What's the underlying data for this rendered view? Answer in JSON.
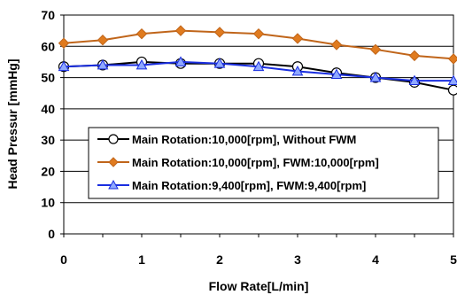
{
  "chart_data": {
    "type": "line",
    "xlabel": "Flow Rate[L/min]",
    "ylabel": "Head Pressur [mmHg]",
    "xlim": [
      0,
      5
    ],
    "ylim": [
      0,
      70
    ],
    "xticks": [
      "0",
      "1",
      "2",
      "3",
      "4",
      "5"
    ],
    "yticks": [
      "0",
      "10",
      "20",
      "30",
      "40",
      "50",
      "60",
      "70"
    ],
    "grid": "horizontal",
    "legend_position": "center",
    "x": [
      0,
      0.5,
      1,
      1.5,
      2,
      2.5,
      3,
      3.5,
      4,
      4.5,
      5
    ],
    "series": [
      {
        "name": "Main Rotation:10,000[rpm], Without FWM",
        "marker": "circle",
        "color": "#000000",
        "fill": "#ffffff",
        "values": [
          53.5,
          54,
          55,
          54.5,
          54.5,
          54.5,
          53.5,
          51.5,
          50,
          48.5,
          46
        ]
      },
      {
        "name": "Main Rotation:10,000[rpm], FWM:10,000[rpm]",
        "marker": "diamond",
        "color": "#c0651a",
        "fill": "#e07b1f",
        "values": [
          61,
          62,
          64,
          65,
          64.5,
          64,
          62.5,
          60.5,
          59,
          57,
          56
        ]
      },
      {
        "name": "Main Rotation:9,400[rpm], FWM:9,400[rpm]",
        "marker": "triangle",
        "color": "#1a2ee0",
        "fill": "#8fa8ff",
        "values": [
          53.5,
          54,
          54,
          55,
          54.5,
          53.5,
          52,
          51,
          50,
          49,
          49
        ]
      }
    ]
  }
}
